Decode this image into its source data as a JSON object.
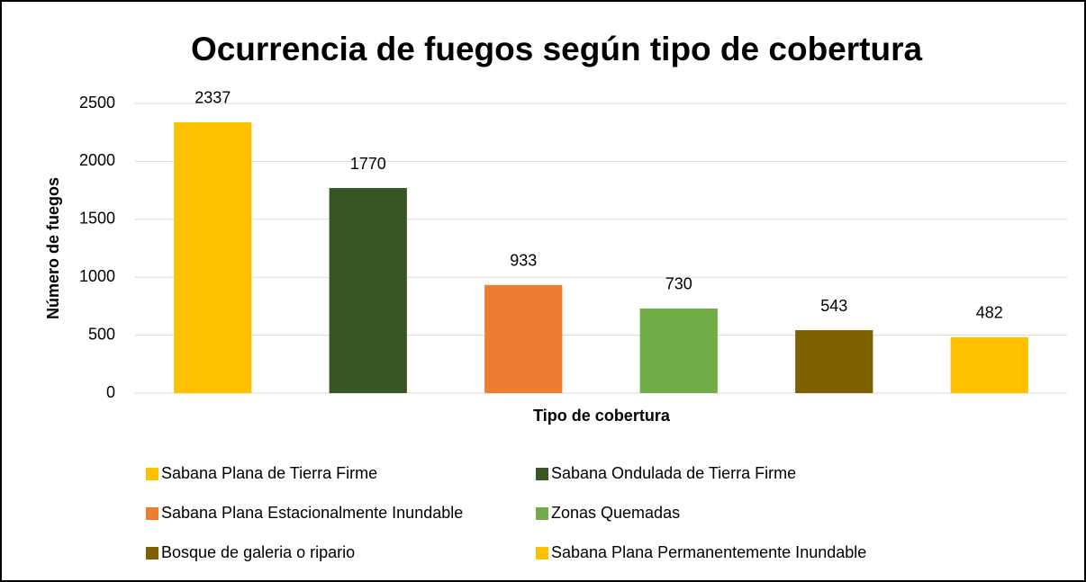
{
  "chart_data": {
    "type": "bar",
    "title": "Ocurrencia de fuegos según tipo de cobertura",
    "x_label": "Tipo de cobertura",
    "y_label": "Número de fuegos",
    "categories": [
      "Sabana Plana de Tierra Firme",
      "Sabana Ondulada de Tierra Firme",
      "Sabana Plana Estacionalmente Inundable",
      "Zonas Quemadas",
      "Bosque de galeria o ripario",
      "Sabana Plana Permanentemente Inundable"
    ],
    "values": [
      2337,
      1770,
      933,
      730,
      543,
      482
    ],
    "colors": [
      "#FFC000",
      "#375623",
      "#ED7D31",
      "#70AD47",
      "#7F6000",
      "#FFC000"
    ],
    "ylim": [
      0,
      2500
    ],
    "yticks": [
      0,
      500,
      1000,
      1500,
      2000,
      2500
    ],
    "grid": true
  }
}
